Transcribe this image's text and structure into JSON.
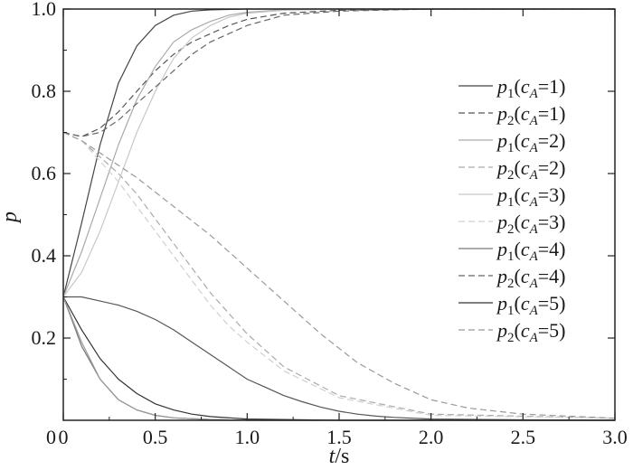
{
  "chart_data": {
    "type": "line",
    "title": "",
    "xlabel": {
      "var": "t",
      "unit": "/s"
    },
    "ylabel": "p",
    "xlim": [
      0,
      3.0
    ],
    "ylim": [
      0,
      1.0
    ],
    "x_ticks": [
      "0",
      "0.5",
      "1.0",
      "1.5",
      "2.0",
      "2.5",
      "3.0"
    ],
    "x_tick_values": [
      0,
      0.5,
      1.0,
      1.5,
      2.0,
      2.5,
      3.0
    ],
    "y_ticks": [
      "0.2",
      "0.4",
      "0.6",
      "0.8",
      "1.0"
    ],
    "y_tick_values": [
      0.2,
      0.4,
      0.6,
      0.8,
      1.0
    ],
    "grid": false,
    "legend_position": "right",
    "series": [
      {
        "name": "p1(cA=1)",
        "legend": {
          "base": "p",
          "sub1": "1",
          "arg": "c",
          "sub2": "A",
          "val": "=1)"
        },
        "style": "solid",
        "color": "#444444",
        "x": [
          0,
          0.1,
          0.2,
          0.3,
          0.4,
          0.5,
          0.6,
          0.7,
          0.8,
          1.0,
          1.5,
          2.0,
          3.0
        ],
        "y": [
          0.3,
          0.48,
          0.67,
          0.82,
          0.91,
          0.96,
          0.985,
          0.995,
          0.998,
          1.0,
          1.0,
          1.0,
          1.0
        ]
      },
      {
        "name": "p2(cA=1)",
        "legend": {
          "base": "p",
          "sub1": "2",
          "arg": "c",
          "sub2": "A",
          "val": "=1)"
        },
        "style": "dashed",
        "color": "#555555",
        "x": [
          0,
          0.1,
          0.2,
          0.3,
          0.4,
          0.5,
          0.6,
          0.7,
          0.8,
          0.9,
          1.0,
          1.2,
          1.5,
          2.0,
          3.0
        ],
        "y": [
          0.7,
          0.69,
          0.71,
          0.75,
          0.8,
          0.85,
          0.89,
          0.92,
          0.94,
          0.96,
          0.975,
          0.99,
          0.997,
          1.0,
          1.0
        ]
      },
      {
        "name": "p1(cA=2)",
        "legend": {
          "base": "p",
          "sub1": "1",
          "arg": "c",
          "sub2": "A",
          "val": "=2)"
        },
        "style": "solid",
        "color": "#aaaaaa",
        "x": [
          0,
          0.1,
          0.2,
          0.3,
          0.4,
          0.5,
          0.6,
          0.7,
          0.8,
          0.9,
          1.0,
          1.2,
          1.5,
          2.0,
          3.0
        ],
        "y": [
          0.3,
          0.41,
          0.54,
          0.67,
          0.78,
          0.86,
          0.92,
          0.95,
          0.97,
          0.985,
          0.992,
          0.998,
          1.0,
          1.0,
          1.0
        ]
      },
      {
        "name": "p2(cA=2)",
        "legend": {
          "base": "p",
          "sub1": "2",
          "arg": "c",
          "sub2": "A",
          "val": "=2)"
        },
        "style": "dashed",
        "color": "#aaaaaa",
        "x": [
          0,
          0.1,
          0.2,
          0.3,
          0.4,
          0.5,
          0.6,
          0.7,
          0.8,
          0.9,
          1.0,
          1.2,
          1.5,
          2.0,
          3.0
        ],
        "y": [
          0.7,
          0.68,
          0.64,
          0.6,
          0.55,
          0.49,
          0.43,
          0.37,
          0.31,
          0.26,
          0.21,
          0.13,
          0.06,
          0.015,
          0.005
        ]
      },
      {
        "name": "p1(cA=3)",
        "legend": {
          "base": "p",
          "sub1": "1",
          "arg": "c",
          "sub2": "A",
          "val": "=3)"
        },
        "style": "solid",
        "color": "#c8c8c8",
        "x": [
          0,
          0.1,
          0.2,
          0.3,
          0.4,
          0.5,
          0.6,
          0.7,
          0.8,
          0.9,
          1.0,
          1.2,
          1.5,
          2.0,
          3.0
        ],
        "y": [
          0.3,
          0.36,
          0.46,
          0.58,
          0.7,
          0.8,
          0.88,
          0.93,
          0.96,
          0.98,
          0.99,
          0.997,
          1.0,
          1.0,
          1.0
        ]
      },
      {
        "name": "p2(cA=3)",
        "legend": {
          "base": "p",
          "sub1": "2",
          "arg": "c",
          "sub2": "A",
          "val": "=3)"
        },
        "style": "dashed",
        "color": "#d0d0d0",
        "x": [
          0,
          0.1,
          0.2,
          0.3,
          0.4,
          0.5,
          0.6,
          0.7,
          0.8,
          0.9,
          1.0,
          1.2,
          1.5,
          2.0,
          3.0
        ],
        "y": [
          0.7,
          0.68,
          0.63,
          0.58,
          0.52,
          0.46,
          0.4,
          0.34,
          0.28,
          0.23,
          0.19,
          0.12,
          0.055,
          0.012,
          0.005
        ]
      },
      {
        "name": "p1(cA=4)",
        "legend": {
          "base": "p",
          "sub1": "1",
          "arg": "c",
          "sub2": "A",
          "val": "=4)"
        },
        "style": "solid",
        "color": "#777777",
        "x": [
          0,
          0.05,
          0.1,
          0.2,
          0.3,
          0.4,
          0.5,
          0.6,
          0.8,
          1.0,
          1.5,
          2.0,
          3.0
        ],
        "y": [
          0.3,
          0.24,
          0.18,
          0.1,
          0.05,
          0.025,
          0.012,
          0.006,
          0.002,
          0.0,
          0.0,
          0.0,
          0.0
        ]
      },
      {
        "name": "p2(cA=4)",
        "legend": {
          "base": "p",
          "sub1": "2",
          "arg": "c",
          "sub2": "A",
          "val": "=4)"
        },
        "style": "dashed",
        "color": "#666666",
        "x": [
          0,
          0.1,
          0.2,
          0.3,
          0.4,
          0.5,
          0.6,
          0.7,
          0.8,
          0.9,
          1.0,
          1.2,
          1.5,
          2.0,
          3.0
        ],
        "y": [
          0.7,
          0.69,
          0.7,
          0.73,
          0.77,
          0.81,
          0.85,
          0.89,
          0.92,
          0.94,
          0.96,
          0.985,
          0.995,
          1.0,
          1.0
        ]
      },
      {
        "name": "p1(cA=5)",
        "legend": {
          "base": "p",
          "sub1": "1",
          "arg": "c",
          "sub2": "A",
          "val": "=5)"
        },
        "style": "solid",
        "color": "#333333",
        "x": [
          0,
          0.1,
          0.2,
          0.3,
          0.4,
          0.5,
          0.6,
          0.7,
          0.8,
          1.0,
          1.5,
          2.0,
          3.0
        ],
        "y": [
          0.3,
          0.22,
          0.15,
          0.1,
          0.065,
          0.04,
          0.025,
          0.015,
          0.009,
          0.003,
          0.0,
          0.0,
          0.0
        ]
      },
      {
        "name": "p2(cA=5)",
        "legend": {
          "base": "p",
          "sub1": "2",
          "arg": "c",
          "sub2": "A",
          "val": "=5)"
        },
        "style": "dashed",
        "color": "#999999",
        "x": [
          0,
          0.1,
          0.2,
          0.4,
          0.6,
          0.8,
          1.0,
          1.2,
          1.4,
          1.6,
          1.8,
          2.0,
          2.2,
          2.5,
          3.0
        ],
        "y": [
          0.7,
          0.68,
          0.65,
          0.59,
          0.52,
          0.45,
          0.37,
          0.29,
          0.21,
          0.14,
          0.09,
          0.05,
          0.03,
          0.015,
          0.005
        ]
      },
      {
        "name": "",
        "style": "solid",
        "color": "#555555",
        "x": [
          0,
          0.1,
          0.2,
          0.3,
          0.4,
          0.5,
          0.6,
          0.7,
          0.8,
          0.9,
          1.0,
          1.1,
          1.2,
          1.3,
          1.4,
          1.5,
          1.6,
          1.7,
          1.8,
          2.0,
          2.5,
          3.0
        ],
        "y": [
          0.3,
          0.3,
          0.29,
          0.28,
          0.265,
          0.245,
          0.22,
          0.19,
          0.16,
          0.13,
          0.1,
          0.08,
          0.06,
          0.045,
          0.032,
          0.022,
          0.015,
          0.01,
          0.007,
          0.003,
          0.001,
          0.0
        ]
      },
      {
        "name": "",
        "style": "solid",
        "color": "#999999",
        "x": [
          0,
          0.1,
          0.2,
          0.3,
          0.4,
          0.5,
          0.6,
          0.8,
          1.0,
          1.5,
          2.0,
          3.0
        ],
        "y": [
          0.3,
          0.19,
          0.1,
          0.05,
          0.025,
          0.012,
          0.006,
          0.002,
          0.0,
          0.0,
          0.0,
          0.0
        ]
      }
    ]
  }
}
